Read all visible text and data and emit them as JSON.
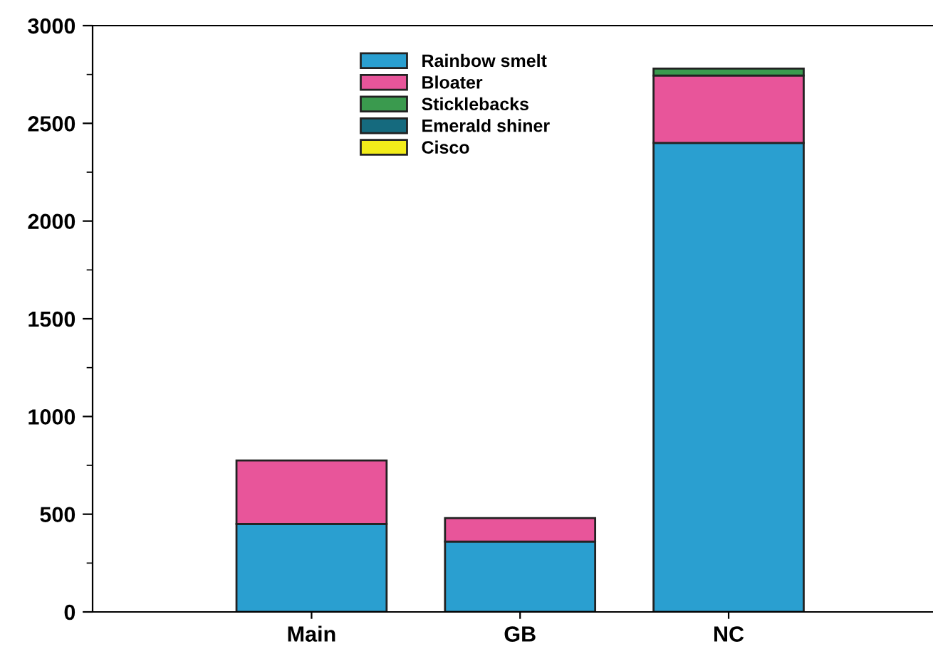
{
  "chart_data": {
    "type": "bar",
    "stacked": true,
    "categories": [
      "Main",
      "GB",
      "NC"
    ],
    "series": [
      {
        "name": "Rainbow smelt",
        "color": "#2a9fd0",
        "values": [
          450,
          360,
          2400
        ]
      },
      {
        "name": "Bloater",
        "color": "#e8559a",
        "values": [
          325,
          120,
          345
        ]
      },
      {
        "name": "Sticklebacks",
        "color": "#3a9a4e",
        "values": [
          0,
          0,
          35
        ]
      },
      {
        "name": "Emerald shiner",
        "color": "#156a7e",
        "values": [
          0,
          0,
          0
        ]
      },
      {
        "name": "Cisco",
        "color": "#f2ec1a",
        "values": [
          0,
          0,
          0
        ]
      }
    ],
    "ylim": [
      0,
      3000
    ],
    "yticks": [
      0,
      500,
      1000,
      1500,
      2000,
      2500,
      3000
    ],
    "legend": "top center",
    "grid": false
  }
}
